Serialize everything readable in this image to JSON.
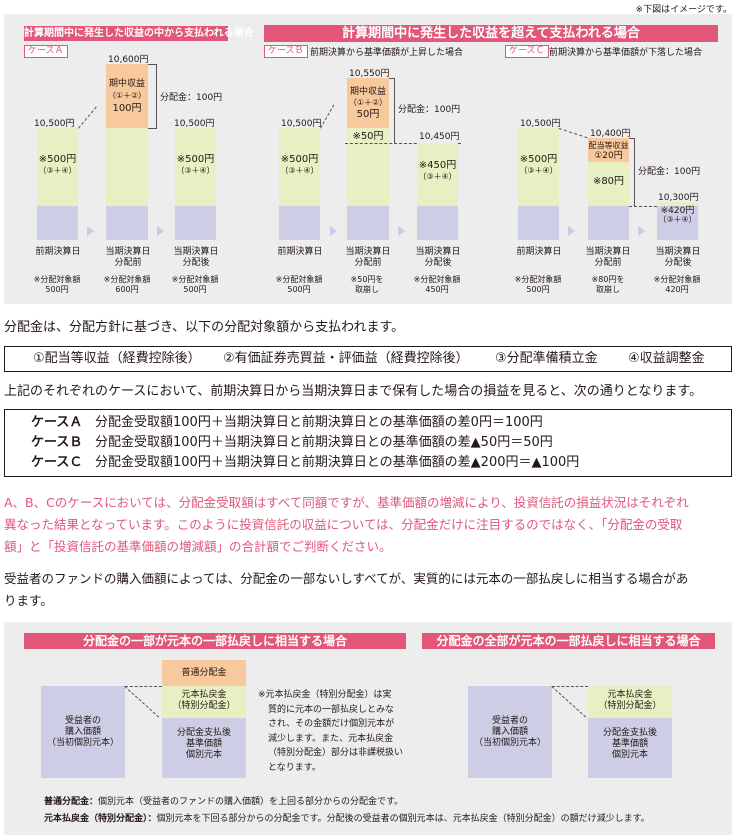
{
  "note": "※下図はイメージです。",
  "top_left_header": "計算期間中に発生した収益の中から支払われる場合",
  "top_right_header": "計算期間中に発生した収益を超えて支払われる場合",
  "case_a_tag": "ケースＡ",
  "case_b_tag": "ケースＢ",
  "case_b_desc": "前期決算から基準価額が上昇した場合",
  "case_c_tag": "ケースＣ",
  "case_c_desc": "前期決算から基準価額が下落した場合",
  "case_a": {
    "v1": "10,500円",
    "v2": "10,600円",
    "v3": "10,500円",
    "mid_title": "期中収益",
    "mid_sub": "（①＋②）",
    "mid_val": "100円",
    "dist": "分配金：100円",
    "left_val": "※500円",
    "left_sub": "（③＋④）",
    "right_val": "※500円",
    "right_sub": "（③＋④）",
    "l1": "前期決算日",
    "l2a": "当期決算日",
    "l2b": "分配前",
    "l3a": "当期決算日",
    "l3b": "分配後",
    "n1a": "※分配対象額",
    "n1b": "500円",
    "n2a": "※分配対象額",
    "n2b": "600円",
    "n3a": "※分配対象額",
    "n3b": "500円"
  },
  "case_b": {
    "v1": "10,500円",
    "v2": "10,550円",
    "v3": "10,450円",
    "mid_title": "期中収益",
    "mid_sub": "（①＋②）",
    "mid_val": "50円",
    "mid_low": "※50円",
    "dist": "分配金：100円",
    "left_val": "※500円",
    "left_sub": "（③＋④）",
    "right_val": "※450円",
    "right_sub": "（③＋④）",
    "l1": "前期決算日",
    "l2a": "当期決算日",
    "l2b": "分配前",
    "l3a": "当期決算日",
    "l3b": "分配後",
    "n1a": "※分配対象額",
    "n1b": "500円",
    "n2a": "※50円を",
    "n2b": "取崩し",
    "n3a": "※分配対象額",
    "n3b": "450円"
  },
  "case_c": {
    "v1": "10,500円",
    "v2": "10,400円",
    "v3": "10,300円",
    "mid_title": "配当等収益",
    "mid_sub": "①20円",
    "mid_low": "※80円",
    "dist": "分配金：100円",
    "left_val": "※500円",
    "left_sub": "（③＋④）",
    "right_val": "※420円",
    "right_sub": "（③＋④）",
    "l1": "前期決算日",
    "l2a": "当期決算日",
    "l2b": "分配前",
    "l3a": "当期決算日",
    "l3b": "分配後",
    "n1a": "※分配対象額",
    "n1b": "500円",
    "n2a": "※80円を",
    "n2b": "取崩し",
    "n3a": "※分配対象額",
    "n3b": "420円"
  },
  "para1": "分配金は、分配方針に基づき、以下の分配対象額から支払われます。",
  "box_items": [
    "①配当等収益（経費控除後）",
    "②有価証券売買益・評価益（経費控除後）",
    "③分配準備積立金",
    "④収益調整金"
  ],
  "para2": "上記のそれぞれのケースにおいて、前期決算日から当期決算日まで保有した場合の損益を見ると、次の通りとなります。",
  "cases": [
    {
      "label": "ケースＡ",
      "text": "分配金受取額100円＋当期決算日と前期決算日との基準価額の差0円＝100円"
    },
    {
      "label": "ケースＢ",
      "text": "分配金受取額100円＋当期決算日と前期決算日との基準価額の差▲50円＝50円"
    },
    {
      "label": "ケースＣ",
      "text": "分配金受取額100円＋当期決算日と前期決算日との基準価額の差▲200円＝▲100円"
    }
  ],
  "pink1": "A、B、Cのケースにおいては、分配金受取額はすべて同額ですが、基準価額の増減により、投資信託の損益状況はそれぞれ",
  "pink2": "異なった結果となっています。このように投資信託の収益については、分配金だけに注目するのではなく、「分配金の受取",
  "pink3": "額」と「投資信託の基準価額の増減額」の合計額でご判断ください。",
  "para3a": "受益者のファンドの購入価額によっては、分配金の一部ないしすべてが、実質的には元本の一部払戻しに相当する場合があ",
  "para3b": "ります。",
  "bl_header": "分配金の一部が元本の一部払戻しに相当する場合",
  "br_header": "分配金の全部が元本の一部払戻しに相当する場合",
  "bl": {
    "left_a": "受益者の",
    "left_b": "購入価額",
    "left_c": "（当初個別元本）",
    "top": "普通分配金",
    "mid_a": "元本払戻金",
    "mid_b": "（特別分配金）",
    "bot_a": "分配金支払後",
    "bot_b": "基準価額",
    "bot_c": "個別元本"
  },
  "br": {
    "left_a": "受益者の",
    "left_b": "購入価額",
    "left_c": "（当初個別元本）",
    "mid_a": "元本払戻金",
    "mid_b": "（特別分配金）",
    "bot_a": "分配金支払後",
    "bot_b": "基準価額",
    "bot_c": "個別元本"
  },
  "note_lines": [
    "※元本払戻金（特別分配金）は実",
    "質的に元本の一部払戻しとみな",
    "され、その金額だけ個別元本が",
    "減少します。また、元本払戻金",
    "（特別分配金）部分は非課税扱い",
    "となります。"
  ],
  "foot1_label": "普通分配金：",
  "foot1_text": "個別元本（受益者のファンドの購入価額）を上回る部分からの分配金です。",
  "foot2_label": "元本払戻金（特別分配金）：",
  "foot2_text": "個別元本を下回る部分からの分配金です。分配後の受益者の個別元本は、元本払戻金（特別分配金）の額だけ減少します。"
}
